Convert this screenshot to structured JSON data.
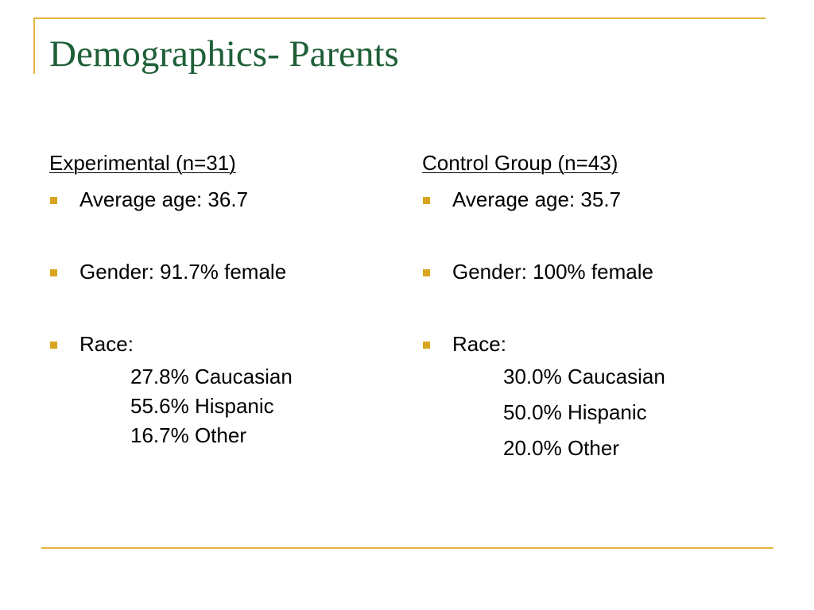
{
  "title": "Demographics- Parents",
  "experimental": {
    "heading": "Experimental (n=31)",
    "age": "Average age: 36.7",
    "gender": "Gender: 91.7% female",
    "race_label": "Race:",
    "race": [
      "27.8% Caucasian",
      "55.6% Hispanic",
      "16.7% Other"
    ]
  },
  "control": {
    "heading": "Control Group (n=43)",
    "age": "Average age: 35.7",
    "gender": "Gender: 100% female",
    "race_label": "Race:",
    "race": [
      "30.0% Caucasian",
      "50.0%  Hispanic",
      "20.0%  Other"
    ]
  },
  "colors": {
    "title": "#1f5f38",
    "accent_line": "#e3b43c",
    "bullet": "#d9a520"
  }
}
